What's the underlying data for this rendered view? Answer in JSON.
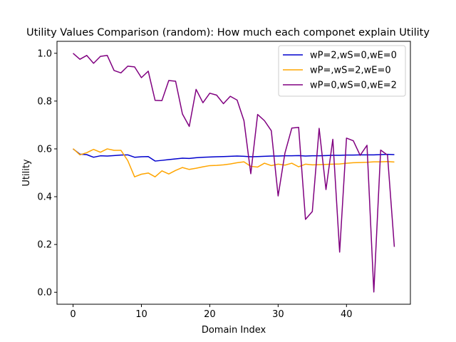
{
  "chart_data": {
    "type": "line",
    "title": "Utility Values Comparison (random): How much each componet explain Utility",
    "xlabel": "Domain Index",
    "ylabel": "Utility",
    "xlim": [
      -2.35,
      49.35
    ],
    "ylim": [
      -0.05,
      1.05
    ],
    "xticks": [
      0,
      10,
      20,
      30,
      40
    ],
    "yticks": [
      0.0,
      0.2,
      0.4,
      0.6,
      0.8,
      1.0
    ],
    "ytick_labels": [
      "0.0",
      "0.2",
      "0.4",
      "0.6",
      "0.8",
      "1.0"
    ],
    "grid": false,
    "legend_position": "top-right",
    "x": [
      0,
      1,
      2,
      3,
      4,
      5,
      6,
      7,
      8,
      9,
      10,
      11,
      12,
      13,
      14,
      15,
      16,
      17,
      18,
      19,
      20,
      21,
      22,
      23,
      24,
      25,
      26,
      27,
      28,
      29,
      30,
      31,
      32,
      33,
      34,
      35,
      36,
      37,
      38,
      39,
      40,
      41,
      42,
      43,
      44,
      45,
      46,
      47
    ],
    "series": [
      {
        "name": "wP=2,wS=0,wE=0",
        "color": "#0000cd",
        "values": [
          0.6,
          0.578,
          0.576,
          0.565,
          0.571,
          0.57,
          0.572,
          0.574,
          0.575,
          0.565,
          0.567,
          0.568,
          0.549,
          0.552,
          0.555,
          0.558,
          0.561,
          0.56,
          0.563,
          0.565,
          0.566,
          0.567,
          0.568,
          0.569,
          0.57,
          0.569,
          0.567,
          0.568,
          0.569,
          0.57,
          0.57,
          0.571,
          0.571,
          0.572,
          0.57,
          0.571,
          0.571,
          0.572,
          0.573,
          0.573,
          0.574,
          0.574,
          0.575,
          0.575,
          0.575,
          0.576,
          0.577,
          0.576
        ]
      },
      {
        "name": "wP=,wS=2,wE=0",
        "color": "#ffa500",
        "values": [
          0.601,
          0.575,
          0.584,
          0.598,
          0.586,
          0.6,
          0.594,
          0.594,
          0.551,
          0.483,
          0.494,
          0.499,
          0.483,
          0.508,
          0.495,
          0.51,
          0.522,
          0.514,
          0.519,
          0.525,
          0.53,
          0.531,
          0.533,
          0.537,
          0.542,
          0.546,
          0.527,
          0.524,
          0.54,
          0.53,
          0.536,
          0.532,
          0.54,
          0.525,
          0.536,
          0.533,
          0.534,
          0.535,
          0.536,
          0.537,
          0.54,
          0.542,
          0.543,
          0.544,
          0.546,
          0.546,
          0.547,
          0.545
        ]
      },
      {
        "name": "wP=0,wS=0,wE=2",
        "color": "#800080",
        "values": [
          1.0,
          0.975,
          0.991,
          0.958,
          0.987,
          0.991,
          0.928,
          0.918,
          0.946,
          0.943,
          0.898,
          0.925,
          0.803,
          0.802,
          0.886,
          0.883,
          0.746,
          0.694,
          0.849,
          0.793,
          0.833,
          0.825,
          0.789,
          0.82,
          0.804,
          0.718,
          0.496,
          0.744,
          0.718,
          0.676,
          0.403,
          0.583,
          0.687,
          0.69,
          0.305,
          0.338,
          0.686,
          0.43,
          0.64,
          0.168,
          0.645,
          0.634,
          0.573,
          0.615,
          0.001,
          0.595,
          0.574,
          0.19
        ]
      }
    ]
  }
}
